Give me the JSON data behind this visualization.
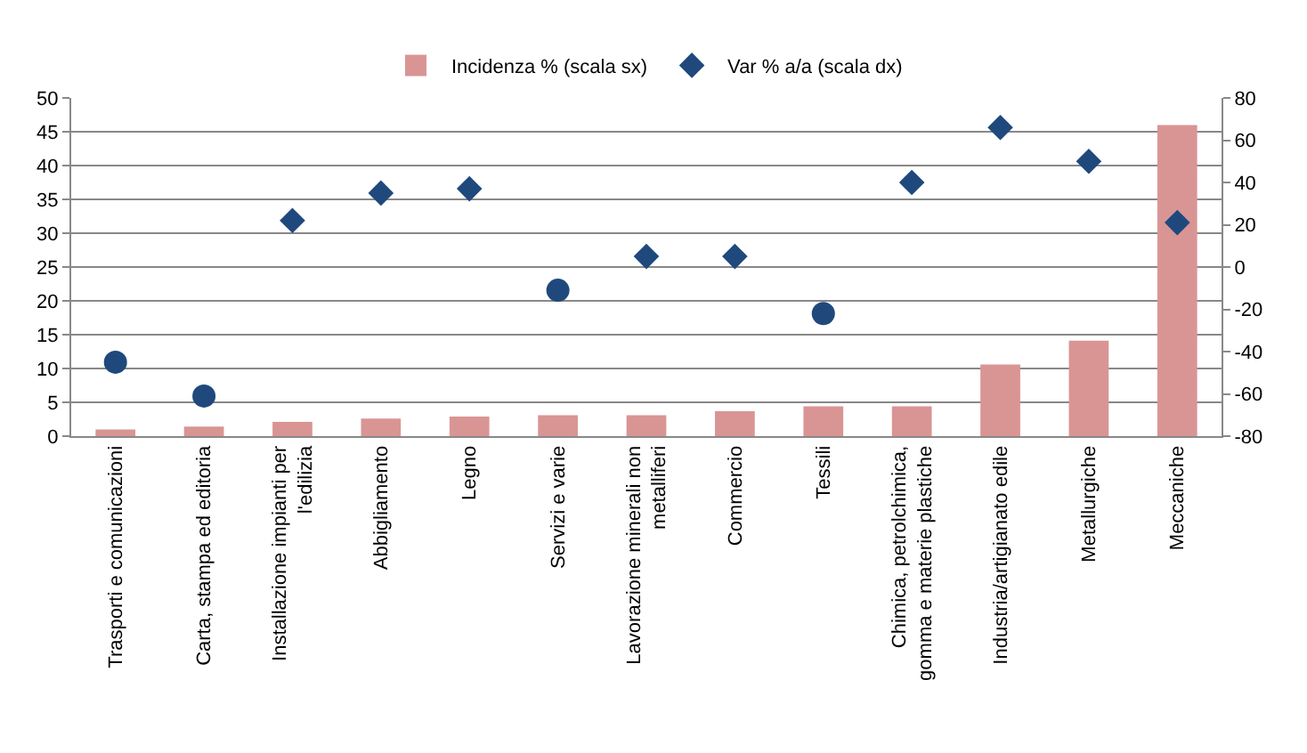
{
  "chart_data": {
    "type": "bar",
    "categories": [
      "Trasporti e comunicazioni",
      "Carta, stampa ed editoria",
      "Installazione impianti per l'edilizia",
      "Abbigliamento",
      "Legno",
      "Servizi e varie",
      "Lavorazione minerali non metalliferi",
      "Commercio",
      "Tessili",
      "Chimica, petrolchimica, gomma e materie plastiche",
      "Industria/artigianato edile",
      "Metallurgiche",
      "Meccaniche"
    ],
    "series": [
      {
        "name": "Incidenza % (scala sx)",
        "color": "#d99594",
        "values": [
          1.0,
          1.4,
          2.1,
          2.6,
          2.9,
          3.1,
          3.1,
          3.7,
          4.4,
          4.4,
          10.6,
          14.1,
          46.0
        ]
      },
      {
        "name": "Var % a/a (scala dx)",
        "type": "scatter",
        "axis": "y2",
        "marker": "diamond",
        "color": "#1f497d",
        "values": [
          null,
          null,
          22,
          35,
          37,
          null,
          5,
          5,
          null,
          40,
          66,
          50,
          21
        ]
      },
      {
        "type": "scatter",
        "axis": "y2",
        "marker": "circle",
        "color": "#1f497d",
        "values": [
          -45,
          -61,
          null,
          null,
          null,
          -11,
          null,
          null,
          -22,
          null,
          null,
          null,
          null
        ]
      }
    ],
    "ylim": [
      0,
      50
    ],
    "yticks": [
      0,
      5,
      10,
      15,
      20,
      25,
      30,
      35,
      40,
      45,
      50
    ],
    "y2lim": [
      -80,
      80
    ],
    "y2ticks": [
      -80,
      -60,
      -40,
      -20,
      0,
      20,
      40,
      60,
      80
    ],
    "grid": "y",
    "legend": "top"
  }
}
